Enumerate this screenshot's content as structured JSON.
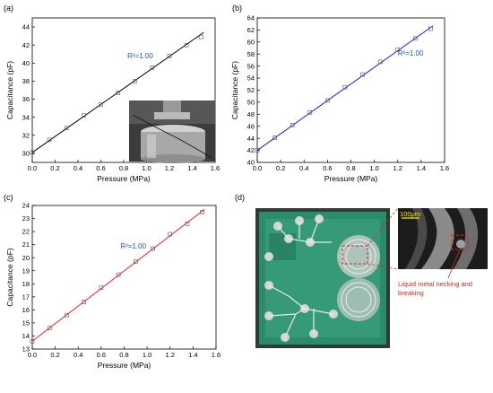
{
  "panels": {
    "a": {
      "letter": "(a)"
    },
    "b": {
      "letter": "(b)"
    },
    "c": {
      "letter": "(c)"
    },
    "d": {
      "letter": "(d)",
      "scale_label": "100μm",
      "annotation": [
        "Liquid metal necking and",
        "breaking"
      ]
    }
  },
  "colors": {
    "a": "#000000",
    "b": "#1a1aff",
    "c": "#ff1a1a",
    "r2_text": "#1f57c4",
    "annotation": "#e0241b"
  },
  "chart_data": [
    {
      "type": "scatter",
      "panel": "a",
      "xlabel": "Pressure (MPa)",
      "ylabel": "Capacitance (pF)",
      "xlim": [
        0,
        1.6
      ],
      "ylim": [
        29,
        45
      ],
      "xticks": [
        "0.0",
        "0.2",
        "0.4",
        "0.6",
        "0.8",
        "1.0",
        "1.2",
        "1.4",
        "1.6"
      ],
      "yticks": [
        "30",
        "32",
        "34",
        "36",
        "38",
        "40",
        "42",
        "44"
      ],
      "annotation": "R²=1.00",
      "marker": "open-square",
      "fit": {
        "type": "linear",
        "x": [
          0.0,
          1.5
        ],
        "y": [
          30.1,
          43.4
        ]
      },
      "series": [
        {
          "x": [
            0.0,
            0.15,
            0.3,
            0.45,
            0.6,
            0.75,
            0.9,
            1.05,
            1.2,
            1.35,
            1.48
          ],
          "y": [
            30.1,
            31.5,
            32.8,
            34.2,
            35.4,
            36.7,
            38.0,
            39.5,
            40.8,
            42.0,
            42.9
          ]
        }
      ]
    },
    {
      "type": "scatter",
      "panel": "b",
      "xlabel": "Pressure (MPa)",
      "ylabel": "Capacitance (pF)",
      "xlim": [
        0,
        1.6
      ],
      "ylim": [
        40,
        64
      ],
      "xticks": [
        "0.0",
        "0.2",
        "0.4",
        "0.6",
        "0.8",
        "1.0",
        "1.2",
        "1.4",
        "1.6"
      ],
      "yticks": [
        "40",
        "42",
        "44",
        "46",
        "48",
        "50",
        "52",
        "54",
        "56",
        "58",
        "60",
        "62",
        "64"
      ],
      "annotation": "R²=1.00",
      "marker": "open-square",
      "fit": {
        "type": "linear",
        "x": [
          0.0,
          1.5
        ],
        "y": [
          42.0,
          62.7
        ]
      },
      "series": [
        {
          "x": [
            0.0,
            0.15,
            0.3,
            0.45,
            0.6,
            0.75,
            0.9,
            1.05,
            1.2,
            1.35,
            1.48
          ],
          "y": [
            42.0,
            44.1,
            46.2,
            48.3,
            50.3,
            52.5,
            54.6,
            56.7,
            58.7,
            60.6,
            62.2
          ]
        }
      ]
    },
    {
      "type": "scatter",
      "panel": "c",
      "xlabel": "Pressure (MPa)",
      "ylabel": "Capacitance (pF)",
      "xlim": [
        0,
        1.6
      ],
      "ylim": [
        13,
        24
      ],
      "xticks": [
        "0.0",
        "0.2",
        "0.4",
        "0.6",
        "0.8",
        "1.0",
        "1.2",
        "1.4",
        "1.6"
      ],
      "yticks": [
        "13",
        "14",
        "15",
        "16",
        "17",
        "18",
        "19",
        "20",
        "21",
        "22",
        "23",
        "24"
      ],
      "annotation": "R²=1.00",
      "marker": "open-square",
      "fit": {
        "type": "linear",
        "x": [
          0.0,
          1.5
        ],
        "y": [
          13.6,
          23.7
        ]
      },
      "series": [
        {
          "x": [
            0.0,
            0.15,
            0.3,
            0.45,
            0.6,
            0.75,
            0.9,
            1.05,
            1.2,
            1.35,
            1.48
          ],
          "y": [
            13.6,
            14.6,
            15.6,
            16.6,
            17.7,
            18.7,
            19.7,
            20.7,
            21.8,
            22.6,
            23.5
          ]
        }
      ]
    }
  ]
}
